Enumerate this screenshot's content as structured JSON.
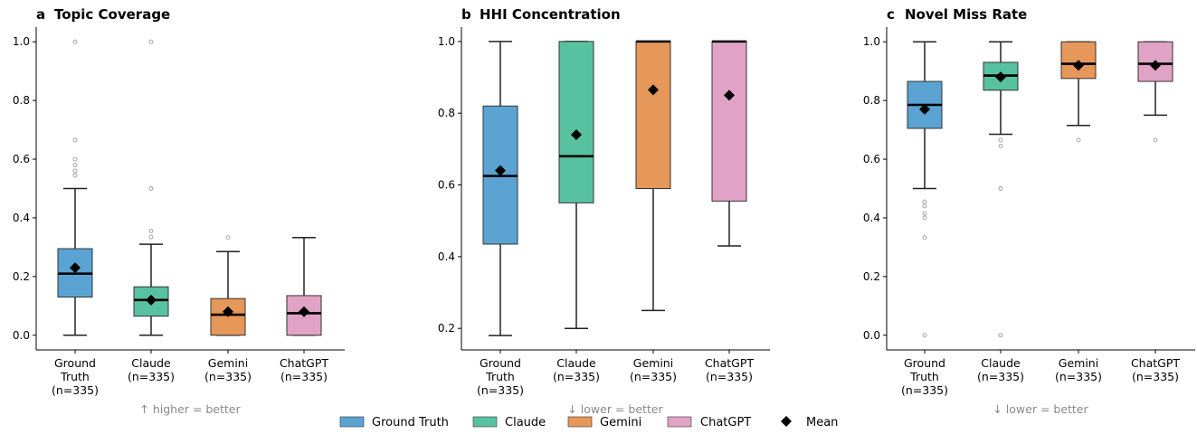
{
  "figure": {
    "legend": [
      {
        "label": "Ground Truth",
        "color": "#5aa3d2"
      },
      {
        "label": "Claude",
        "color": "#58c2a0"
      },
      {
        "label": "Gemini",
        "color": "#e6975a"
      },
      {
        "label": "ChatGPT",
        "color": "#e0a3c6"
      },
      {
        "label": "Mean",
        "marker": "diamond",
        "color": "#000000"
      }
    ]
  },
  "chart_data": [
    {
      "type": "box",
      "letter": "a",
      "title": "Topic Coverage",
      "note": "↑ higher = better",
      "ylim": [
        -0.05,
        1.05
      ],
      "yticks": [
        "0.0",
        "0.2",
        "0.4",
        "0.6",
        "0.8",
        "1.0"
      ],
      "categories": [
        {
          "lines": [
            "Ground",
            "Truth",
            "(n=335)"
          ]
        },
        {
          "lines": [
            "Claude",
            "(n=335)"
          ]
        },
        {
          "lines": [
            "Gemini",
            "(n=335)"
          ]
        },
        {
          "lines": [
            "ChatGPT",
            "(n=335)"
          ]
        }
      ],
      "series": [
        {
          "name": "Ground Truth",
          "whisker_low": 0.0,
          "q1": 0.13,
          "median": 0.21,
          "q3": 0.295,
          "whisker_high": 0.5,
          "mean": 0.23,
          "outliers": [
            0.545,
            0.56,
            0.58,
            0.6,
            0.665,
            1.0
          ]
        },
        {
          "name": "Claude",
          "whisker_low": 0.0,
          "q1": 0.065,
          "median": 0.12,
          "q3": 0.165,
          "whisker_high": 0.31,
          "mean": 0.12,
          "outliers": [
            0.335,
            0.355,
            0.5,
            1.0
          ]
        },
        {
          "name": "Gemini",
          "whisker_low": 0.0,
          "q1": 0.0,
          "median": 0.07,
          "q3": 0.125,
          "whisker_high": 0.285,
          "mean": 0.08,
          "outliers": [
            0.333
          ]
        },
        {
          "name": "ChatGPT",
          "whisker_low": 0.0,
          "q1": 0.0,
          "median": 0.075,
          "q3": 0.135,
          "whisker_high": 0.333,
          "mean": 0.08,
          "outliers": []
        }
      ]
    },
    {
      "type": "box",
      "letter": "b",
      "title": "HHI Concentration",
      "note": "↓ lower = better",
      "ylim": [
        0.14,
        1.04
      ],
      "yticks": [
        "0.2",
        "0.4",
        "0.6",
        "0.8",
        "1.0"
      ],
      "categories": [
        {
          "lines": [
            "Ground",
            "Truth",
            "(n=335)"
          ]
        },
        {
          "lines": [
            "Claude",
            "(n=335)"
          ]
        },
        {
          "lines": [
            "Gemini",
            "(n=335)"
          ]
        },
        {
          "lines": [
            "ChatGPT",
            "(n=335)"
          ]
        }
      ],
      "series": [
        {
          "name": "Ground Truth",
          "whisker_low": 0.18,
          "q1": 0.435,
          "median": 0.625,
          "q3": 0.82,
          "whisker_high": 1.0,
          "mean": 0.64,
          "outliers": []
        },
        {
          "name": "Claude",
          "whisker_low": 0.2,
          "q1": 0.55,
          "median": 0.68,
          "q3": 1.0,
          "whisker_high": 1.0,
          "mean": 0.74,
          "outliers": []
        },
        {
          "name": "Gemini",
          "whisker_low": 0.25,
          "q1": 0.59,
          "median": 1.0,
          "q3": 1.0,
          "whisker_high": 1.0,
          "mean": 0.865,
          "outliers": []
        },
        {
          "name": "ChatGPT",
          "whisker_low": 0.43,
          "q1": 0.555,
          "median": 1.0,
          "q3": 1.0,
          "whisker_high": 1.0,
          "mean": 0.85,
          "outliers": []
        }
      ]
    },
    {
      "type": "box",
      "letter": "c",
      "title": "Novel Miss Rate",
      "note": "↓ lower = better",
      "ylim": [
        -0.05,
        1.05
      ],
      "yticks": [
        "0.0",
        "0.2",
        "0.4",
        "0.6",
        "0.8",
        "1.0"
      ],
      "categories": [
        {
          "lines": [
            "Ground",
            "Truth",
            "(n=335)"
          ]
        },
        {
          "lines": [
            "Claude",
            "(n=335)"
          ]
        },
        {
          "lines": [
            "Gemini",
            "(n=335)"
          ]
        },
        {
          "lines": [
            "ChatGPT",
            "(n=335)"
          ]
        }
      ],
      "series": [
        {
          "name": "Ground Truth",
          "whisker_low": 0.5,
          "q1": 0.705,
          "median": 0.785,
          "q3": 0.865,
          "whisker_high": 1.0,
          "mean": 0.77,
          "outliers": [
            0.0,
            0.333,
            0.4,
            0.415,
            0.44,
            0.455
          ]
        },
        {
          "name": "Claude",
          "whisker_low": 0.685,
          "q1": 0.835,
          "median": 0.885,
          "q3": 0.93,
          "whisker_high": 1.0,
          "mean": 0.88,
          "outliers": [
            0.0,
            0.5,
            0.645,
            0.665
          ]
        },
        {
          "name": "Gemini",
          "whisker_low": 0.715,
          "q1": 0.875,
          "median": 0.925,
          "q3": 1.0,
          "whisker_high": 1.0,
          "mean": 0.92,
          "outliers": [
            0.665
          ]
        },
        {
          "name": "ChatGPT",
          "whisker_low": 0.75,
          "q1": 0.865,
          "median": 0.925,
          "q3": 1.0,
          "whisker_high": 1.0,
          "mean": 0.92,
          "outliers": [
            0.665
          ]
        }
      ]
    }
  ]
}
